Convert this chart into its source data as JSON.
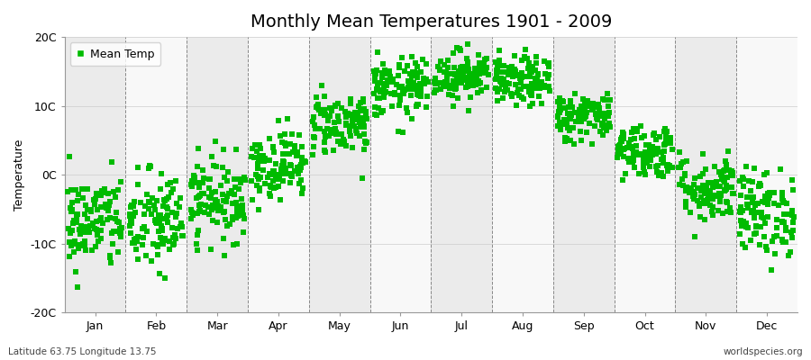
{
  "title": "Monthly Mean Temperatures 1901 - 2009",
  "ylabel": "Temperature",
  "xlabel_bottom_left": "Latitude 63.75 Longitude 13.75",
  "xlabel_bottom_right": "worldspecies.org",
  "legend_label": "Mean Temp",
  "dot_color": "#00bb00",
  "band_color_odd": "#ebebeb",
  "band_color_even": "#f8f8f8",
  "fig_bg_color": "#ffffff",
  "ylim": [
    -20,
    20
  ],
  "yticks": [
    -20,
    -10,
    0,
    10,
    20
  ],
  "ytick_labels": [
    "-20C",
    "-10C",
    "0C",
    "10C",
    "20C"
  ],
  "months": [
    "Jan",
    "Feb",
    "Mar",
    "Apr",
    "May",
    "Jun",
    "Jul",
    "Aug",
    "Sep",
    "Oct",
    "Nov",
    "Dec"
  ],
  "mean_temps": [
    -7.0,
    -7.0,
    -3.5,
    1.5,
    7.5,
    12.5,
    14.5,
    13.5,
    8.5,
    3.5,
    -2.0,
    -5.5
  ],
  "std_temps": [
    3.5,
    3.8,
    3.0,
    2.5,
    2.3,
    2.2,
    1.8,
    1.8,
    1.8,
    2.0,
    2.5,
    3.2
  ],
  "n_years": 109,
  "marker_size": 18,
  "dpi": 100,
  "figsize": [
    9.0,
    4.0
  ],
  "title_fontsize": 14,
  "axis_fontsize": 9,
  "legend_fontsize": 9
}
